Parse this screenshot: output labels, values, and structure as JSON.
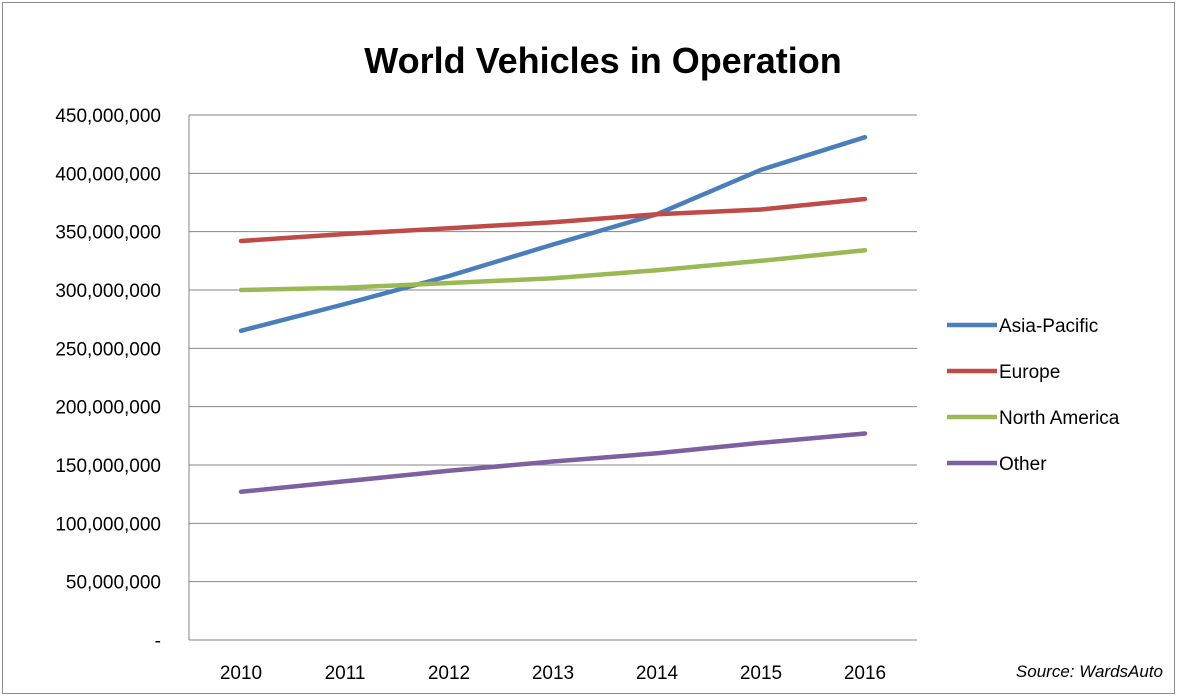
{
  "chart_data": {
    "type": "line",
    "title": "World Vehicles in Operation",
    "xlabel": "",
    "ylabel": "",
    "categories": [
      "2010",
      "2011",
      "2012",
      "2013",
      "2014",
      "2015",
      "2016"
    ],
    "ylim": [
      0,
      450000000
    ],
    "yticks": [
      0,
      50000000,
      100000000,
      150000000,
      200000000,
      250000000,
      300000000,
      350000000,
      400000000,
      450000000
    ],
    "ytick_labels": [
      "-",
      "50,000,000",
      "100,000,000",
      "150,000,000",
      "200,000,000",
      "250,000,000",
      "300,000,000",
      "350,000,000",
      "400,000,000",
      "450,000,000"
    ],
    "grid": "horizontal",
    "legend_position": "right",
    "series": [
      {
        "name": "Asia-Pacific",
        "color": "#4a7ebb",
        "values": [
          265000000,
          288000000,
          312000000,
          339000000,
          365000000,
          403000000,
          431000000
        ]
      },
      {
        "name": "Europe",
        "color": "#be4b48",
        "values": [
          342000000,
          348000000,
          353000000,
          358000000,
          365000000,
          369000000,
          378000000
        ]
      },
      {
        "name": "North America",
        "color": "#98b954",
        "values": [
          300000000,
          302000000,
          306000000,
          310000000,
          317000000,
          325000000,
          334000000
        ]
      },
      {
        "name": "Other",
        "color": "#7d60a0",
        "values": [
          127000000,
          136000000,
          145000000,
          153000000,
          160000000,
          169000000,
          177000000
        ]
      }
    ],
    "annotations": [
      "Source: WardsAuto"
    ]
  }
}
